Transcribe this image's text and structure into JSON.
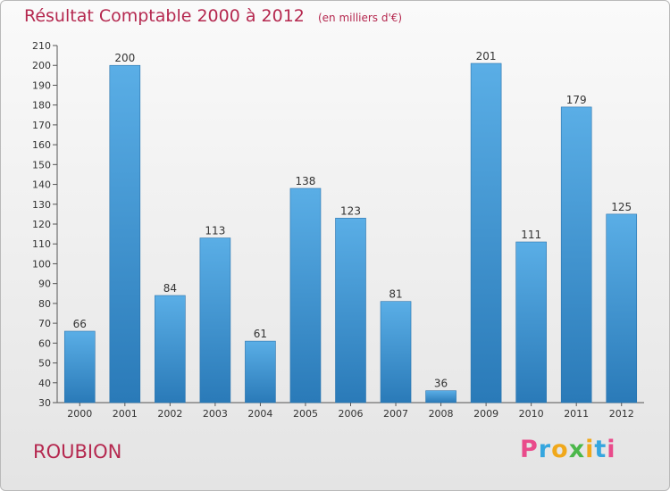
{
  "header": {
    "title": "Résultat Comptable 2000 à 2012",
    "subtitle": "(en milliers d'€)"
  },
  "commune": "ROUBION",
  "logo": {
    "text": "Proxiti",
    "colors": [
      "#e94b8b",
      "#35a6df",
      "#f0a81b",
      "#4bb74a"
    ]
  },
  "chart_data": {
    "type": "bar",
    "title": "Résultat Comptable 2000 à 2012",
    "subtitle": "(en milliers d'€)",
    "xlabel": "",
    "ylabel": "",
    "categories": [
      "2000",
      "2001",
      "2002",
      "2003",
      "2004",
      "2005",
      "2006",
      "2007",
      "2008",
      "2009",
      "2010",
      "2011",
      "2012"
    ],
    "values": [
      66,
      200,
      84,
      113,
      61,
      138,
      123,
      81,
      36,
      201,
      111,
      179,
      125
    ],
    "ylim": [
      30,
      210
    ],
    "yticks": [
      30,
      40,
      50,
      60,
      70,
      80,
      90,
      100,
      110,
      120,
      130,
      140,
      150,
      160,
      170,
      180,
      190,
      200,
      210
    ],
    "grid": false,
    "legend": "none",
    "bar_color": "#3a8fd0"
  }
}
